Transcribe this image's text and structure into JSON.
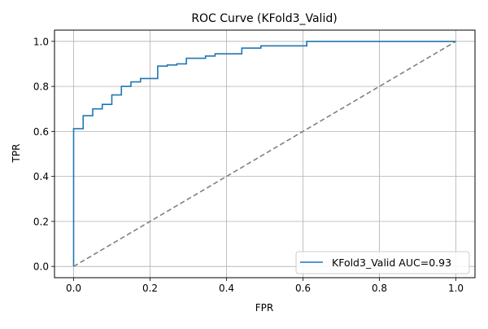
{
  "chart_data": {
    "type": "line",
    "title": "ROC Curve (KFold3_Valid)",
    "xlabel": "FPR",
    "ylabel": "TPR",
    "xlim": [
      -0.05,
      1.05
    ],
    "ylim": [
      -0.05,
      1.05
    ],
    "xticks": [
      0.0,
      0.2,
      0.4,
      0.6,
      0.8,
      1.0
    ],
    "yticks": [
      0.0,
      0.2,
      0.4,
      0.6,
      0.8,
      1.0
    ],
    "xtick_labels": [
      "0.0",
      "0.2",
      "0.4",
      "0.6",
      "0.8",
      "1.0"
    ],
    "ytick_labels": [
      "0.0",
      "0.2",
      "0.4",
      "0.6",
      "0.8",
      "1.0"
    ],
    "grid": true,
    "legend_position": "lower-right",
    "series": [
      {
        "name": "KFold3_Valid AUC=0.93",
        "color": "#1f77b4",
        "style": "step",
        "x": [
          0.0,
          0.0,
          0.025,
          0.025,
          0.05,
          0.05,
          0.075,
          0.075,
          0.1,
          0.1,
          0.125,
          0.125,
          0.15,
          0.15,
          0.175,
          0.175,
          0.22,
          0.22,
          0.245,
          0.245,
          0.27,
          0.27,
          0.295,
          0.295,
          0.345,
          0.345,
          0.37,
          0.37,
          0.44,
          0.44,
          0.49,
          0.49,
          0.61,
          0.61,
          1.0
        ],
        "y": [
          0.0,
          0.612,
          0.612,
          0.67,
          0.67,
          0.7,
          0.7,
          0.72,
          0.72,
          0.762,
          0.762,
          0.8,
          0.8,
          0.82,
          0.82,
          0.835,
          0.835,
          0.89,
          0.89,
          0.895,
          0.895,
          0.9,
          0.9,
          0.925,
          0.925,
          0.935,
          0.935,
          0.945,
          0.945,
          0.97,
          0.97,
          0.98,
          0.98,
          1.0,
          1.0
        ]
      },
      {
        "name": "",
        "color": "#808080",
        "style": "dashed",
        "x": [
          0.0,
          1.0
        ],
        "y": [
          0.0,
          1.0
        ]
      }
    ]
  }
}
